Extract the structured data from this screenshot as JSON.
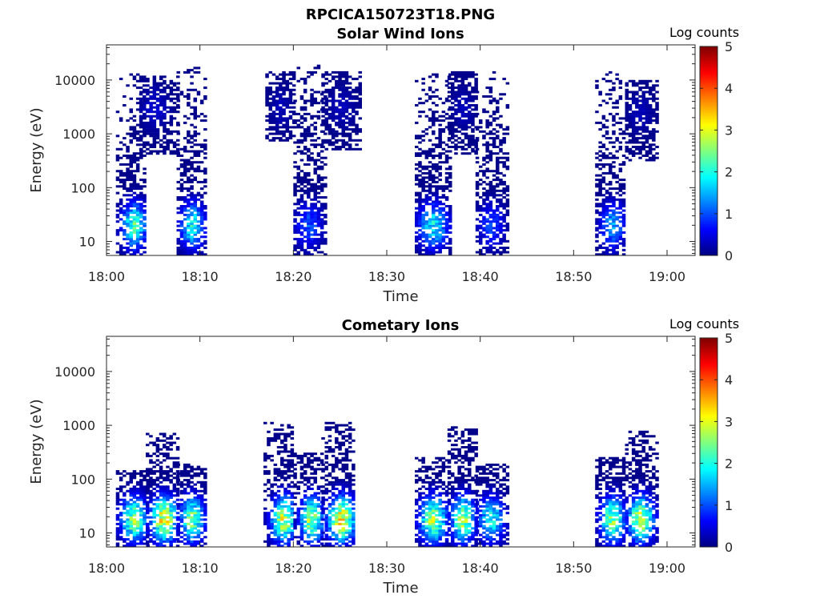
{
  "figure": {
    "main_title": "RPCICA150723T18.PNG"
  },
  "colorbar": {
    "label": "Log counts",
    "ticks": [
      "0",
      "1",
      "2",
      "3",
      "4",
      "5"
    ],
    "range": [
      0,
      5
    ],
    "colormap": "jet"
  },
  "chart_data": [
    {
      "type": "heatmap",
      "title": "Solar Wind Ions",
      "xlabel": "Time",
      "ylabel": "Energy (eV)",
      "x_ticks": [
        "18:00",
        "18:10",
        "18:20",
        "18:30",
        "18:40",
        "18:50",
        "19:00"
      ],
      "x_range_minutes": [
        0,
        63
      ],
      "y_scale": "log",
      "y_ticks": [
        "10",
        "100",
        "1000",
        "10000"
      ],
      "y_range": [
        5.5,
        45000
      ],
      "colorbar_label": "Log counts",
      "clusters": [
        {
          "t_start": 1.0,
          "t_end": 4.2,
          "e_min": 5.5,
          "e_max": 14000,
          "peak_t": 2.8,
          "peak_e": 20,
          "peak_val": 2.3
        },
        {
          "t_start": 3.5,
          "t_end": 7.5,
          "e_min": 400,
          "e_max": 12000,
          "peak_t": 5.0,
          "peak_e": 3000,
          "peak_val": 0.4
        },
        {
          "t_start": 7.5,
          "t_end": 10.6,
          "e_min": 5.5,
          "e_max": 18000,
          "peak_t": 9.0,
          "peak_e": 20,
          "peak_val": 2.0
        },
        {
          "t_start": 17.0,
          "t_end": 20.0,
          "e_min": 700,
          "e_max": 15000,
          "peak_t": 18.5,
          "peak_e": 3000,
          "peak_val": 0.3
        },
        {
          "t_start": 20.0,
          "t_end": 23.5,
          "e_min": 5.5,
          "e_max": 20000,
          "peak_t": 21.5,
          "peak_e": 20,
          "peak_val": 1.1
        },
        {
          "t_start": 23.0,
          "t_end": 27.0,
          "e_min": 500,
          "e_max": 15000,
          "peak_t": 25.0,
          "peak_e": 3000,
          "peak_val": 0.3
        },
        {
          "t_start": 33.0,
          "t_end": 36.8,
          "e_min": 5.5,
          "e_max": 16000,
          "peak_t": 34.8,
          "peak_e": 20,
          "peak_val": 1.9
        },
        {
          "t_start": 36.5,
          "t_end": 39.5,
          "e_min": 400,
          "e_max": 15000,
          "peak_t": 38.0,
          "peak_e": 3000,
          "peak_val": 0.3
        },
        {
          "t_start": 39.5,
          "t_end": 42.8,
          "e_min": 5.5,
          "e_max": 20000,
          "peak_t": 41.0,
          "peak_e": 20,
          "peak_val": 1.0
        },
        {
          "t_start": 52.3,
          "t_end": 55.5,
          "e_min": 5.5,
          "e_max": 15000,
          "peak_t": 54.0,
          "peak_e": 20,
          "peak_val": 1.5
        },
        {
          "t_start": 55.5,
          "t_end": 58.8,
          "e_min": 300,
          "e_max": 10000,
          "peak_t": 57.0,
          "peak_e": 2500,
          "peak_val": 0.3
        }
      ]
    },
    {
      "type": "heatmap",
      "title": "Cometary Ions",
      "xlabel": "Time",
      "ylabel": "Energy (eV)",
      "x_ticks": [
        "18:00",
        "18:10",
        "18:20",
        "18:30",
        "18:40",
        "18:50",
        "19:00"
      ],
      "x_range_minutes": [
        0,
        63
      ],
      "y_scale": "log",
      "y_ticks": [
        "10",
        "100",
        "1000",
        "10000"
      ],
      "y_range": [
        5.5,
        45000
      ],
      "colorbar_label": "Log counts",
      "clusters": [
        {
          "t_start": 1.0,
          "t_end": 4.5,
          "e_min": 5.5,
          "e_max": 150,
          "peak_t": 2.8,
          "peak_e": 18,
          "peak_val": 2.6
        },
        {
          "t_start": 4.2,
          "t_end": 7.5,
          "e_min": 5.5,
          "e_max": 700,
          "peak_t": 6.0,
          "peak_e": 18,
          "peak_val": 3.3
        },
        {
          "t_start": 7.5,
          "t_end": 10.5,
          "e_min": 5.5,
          "e_max": 200,
          "peak_t": 9.0,
          "peak_e": 18,
          "peak_val": 2.6
        },
        {
          "t_start": 16.8,
          "t_end": 20.0,
          "e_min": 5.5,
          "e_max": 1200,
          "peak_t": 18.8,
          "peak_e": 18,
          "peak_val": 3.0
        },
        {
          "t_start": 20.0,
          "t_end": 23.0,
          "e_min": 5.5,
          "e_max": 300,
          "peak_t": 21.8,
          "peak_e": 18,
          "peak_val": 2.8
        },
        {
          "t_start": 23.0,
          "t_end": 26.5,
          "e_min": 5.5,
          "e_max": 1200,
          "peak_t": 25.0,
          "peak_e": 18,
          "peak_val": 3.3
        },
        {
          "t_start": 33.0,
          "t_end": 36.5,
          "e_min": 5.5,
          "e_max": 250,
          "peak_t": 34.8,
          "peak_e": 18,
          "peak_val": 2.8
        },
        {
          "t_start": 36.5,
          "t_end": 39.5,
          "e_min": 5.5,
          "e_max": 1000,
          "peak_t": 38.0,
          "peak_e": 18,
          "peak_val": 2.8
        },
        {
          "t_start": 39.5,
          "t_end": 42.8,
          "e_min": 5.5,
          "e_max": 200,
          "peak_t": 41.0,
          "peak_e": 18,
          "peak_val": 2.0
        },
        {
          "t_start": 52.3,
          "t_end": 55.5,
          "e_min": 5.5,
          "e_max": 250,
          "peak_t": 54.0,
          "peak_e": 18,
          "peak_val": 2.6
        },
        {
          "t_start": 55.5,
          "t_end": 58.8,
          "e_min": 5.5,
          "e_max": 800,
          "peak_t": 57.0,
          "peak_e": 18,
          "peak_val": 3.0
        }
      ]
    }
  ]
}
